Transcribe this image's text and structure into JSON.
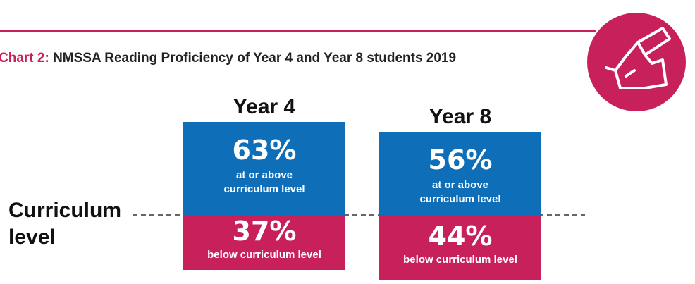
{
  "chart_data": {
    "type": "diverging_stacked_bar",
    "chart_number": "Chart 2:",
    "title": "NMSSA Reading Proficiency of Year 4 and Year 8 students 2019",
    "baseline_label": "Curriculum level",
    "categories": [
      "Year 4",
      "Year 8"
    ],
    "series": [
      {
        "name": "at or above curriculum level",
        "color": "#0e6fb8",
        "values": [
          63,
          56
        ],
        "value_labels": [
          "63%",
          "56%"
        ]
      },
      {
        "name": "below curriculum level",
        "color": "#c8205a",
        "values": [
          37,
          44
        ],
        "value_labels": [
          "37%",
          "44%"
        ]
      }
    ]
  }
}
